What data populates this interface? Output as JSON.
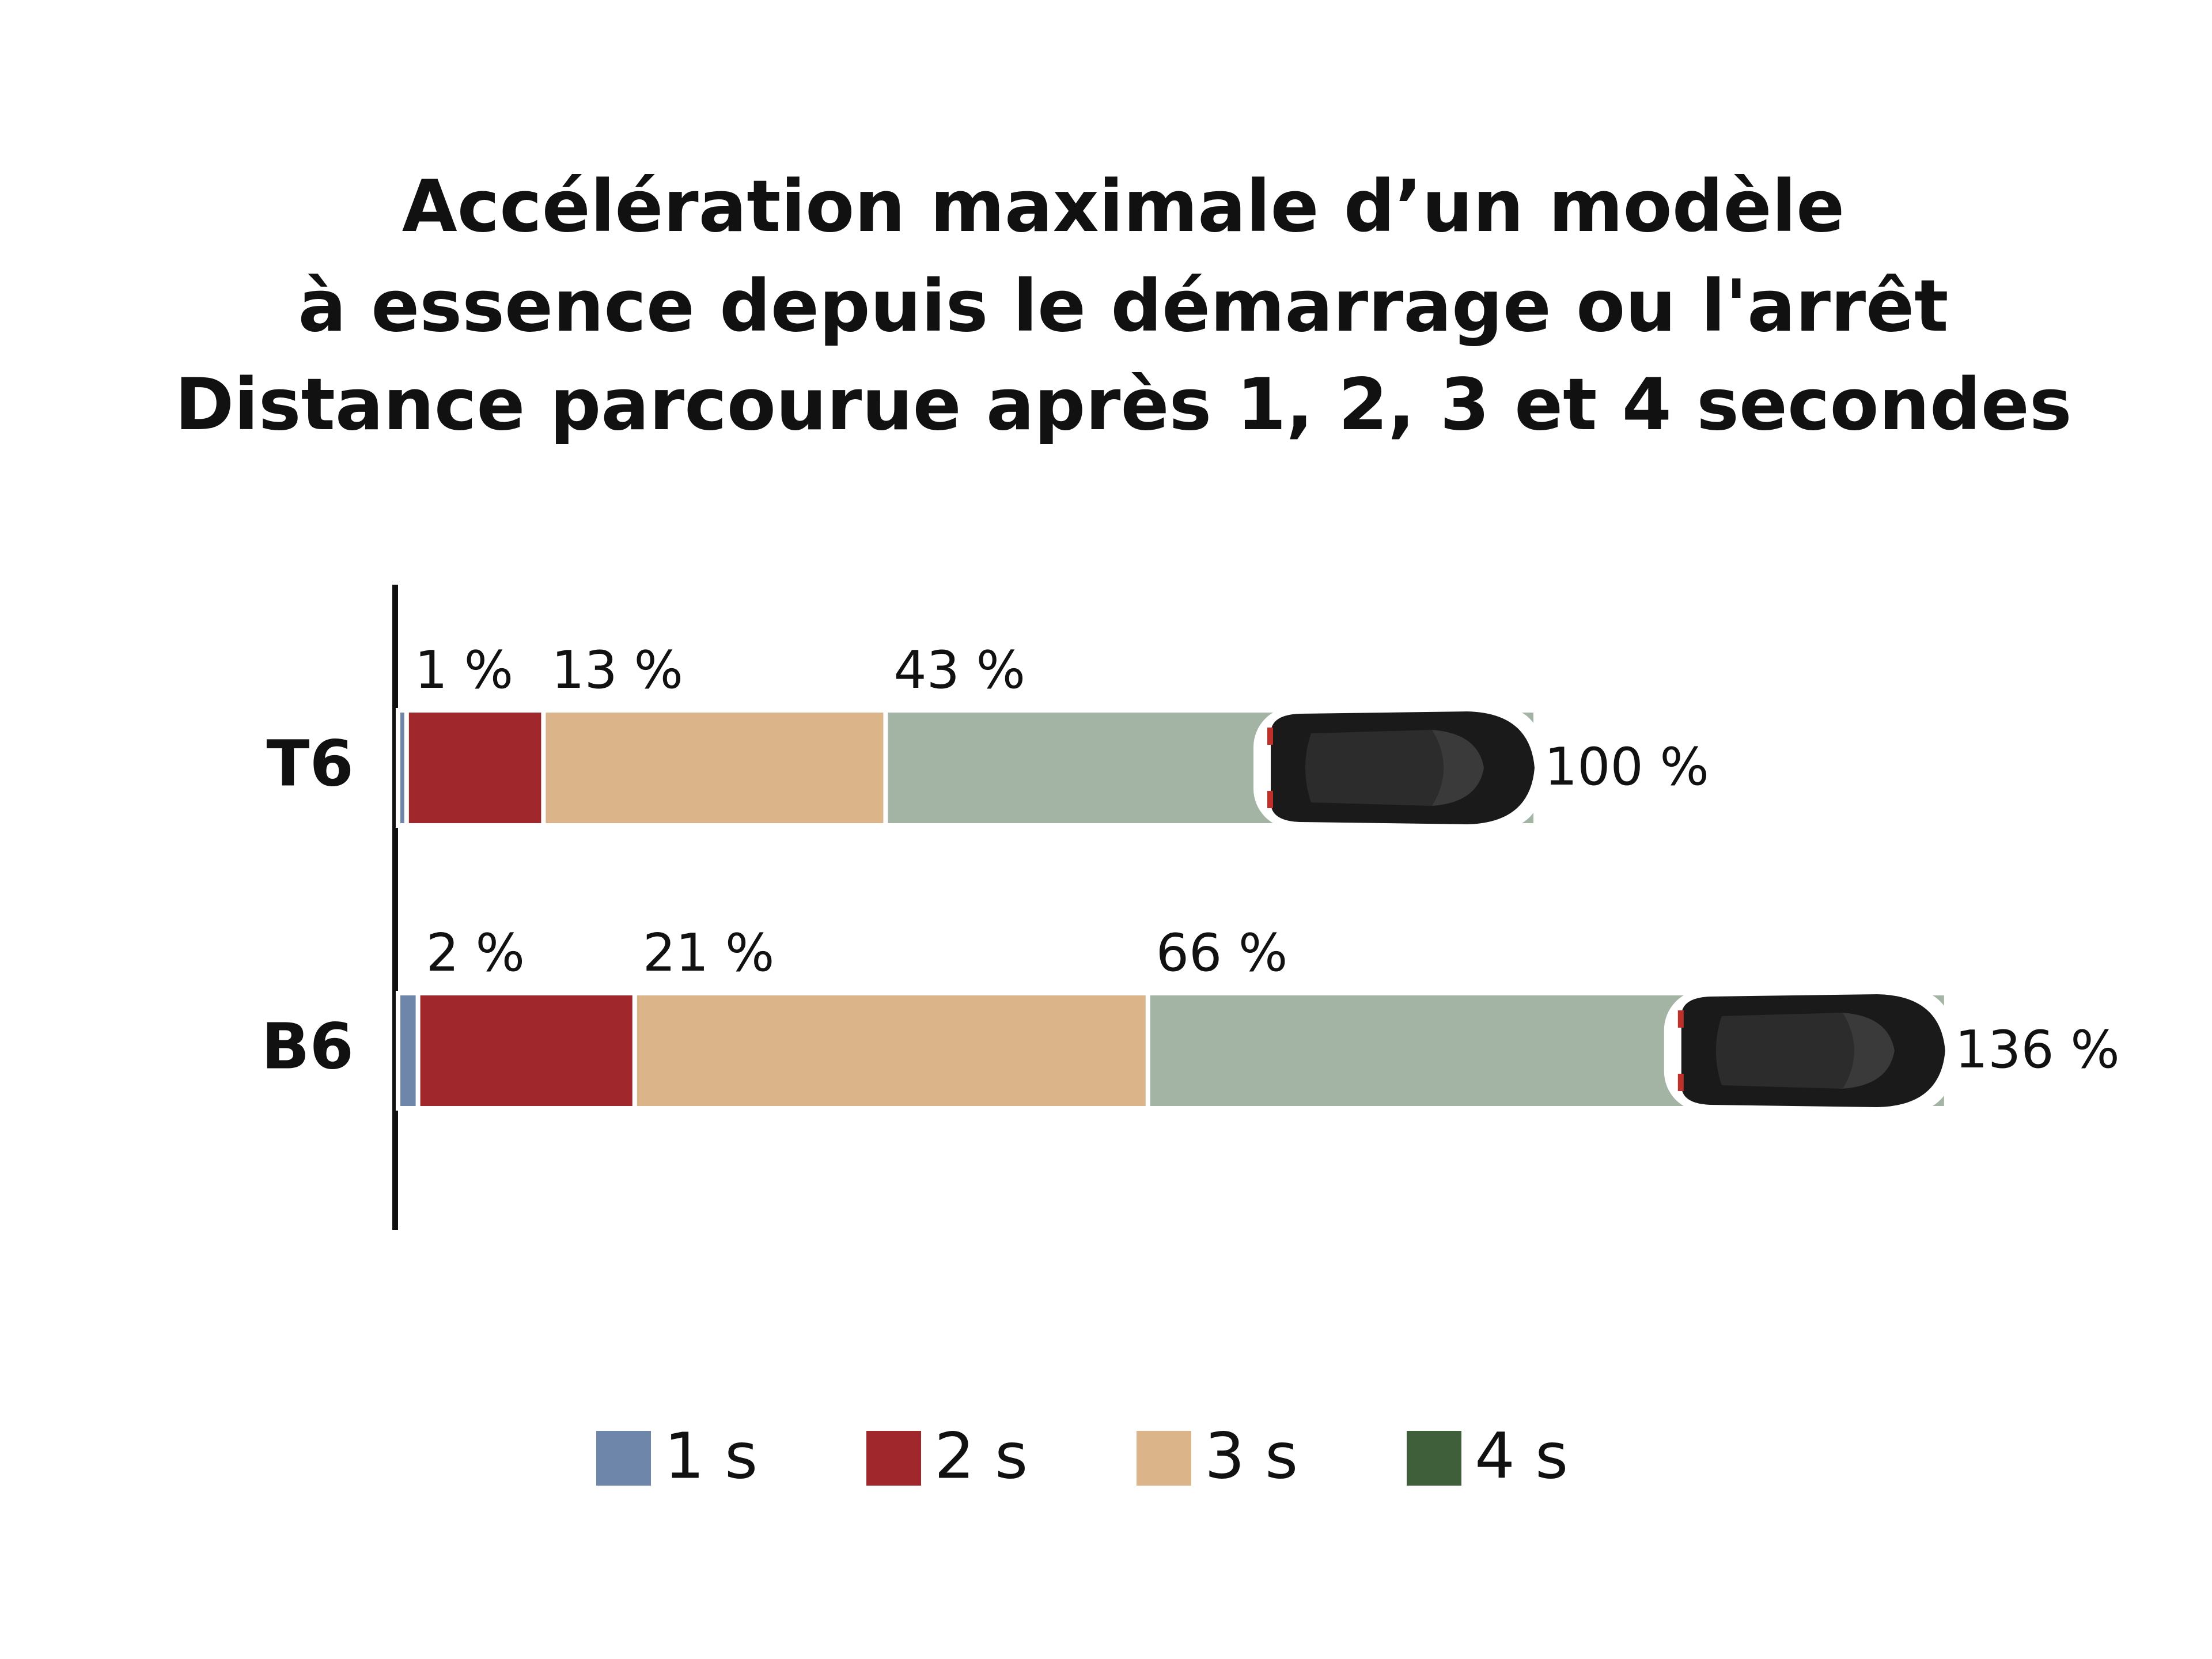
{
  "chart_data": {
    "type": "bar",
    "orientation": "horizontal",
    "title": [
      "Accélération maximale d’un modèle",
      "à essence depuis le démarrage ou l'arrêt",
      "Distance parcourue après 1, 2, 3 et 4 secondes"
    ],
    "categories": [
      "T6",
      "B6"
    ],
    "series": [
      {
        "name": "1 s",
        "color": "#6f86ab",
        "legend_color": "#6f86ab",
        "values": [
          1,
          2
        ],
        "value_labels": [
          "1 %",
          "2 %"
        ]
      },
      {
        "name": "2 s",
        "color": "#a0282d",
        "legend_color": "#a0282d",
        "values": [
          13,
          21
        ],
        "value_labels": [
          "13 %",
          "21 %"
        ]
      },
      {
        "name": "3 s",
        "color": "#dbb48a",
        "legend_color": "#dbb48a",
        "values": [
          43,
          66
        ],
        "value_labels": [
          "43 %",
          "66 %"
        ]
      },
      {
        "name": "4 s",
        "color": "#a4b4a4",
        "legend_color": "#3f5e3a",
        "values": [
          100,
          136
        ],
        "value_labels": [
          "100 %",
          "136 %"
        ]
      }
    ],
    "xlim": [
      0,
      150
    ],
    "grid": false,
    "legend": "bottom"
  }
}
